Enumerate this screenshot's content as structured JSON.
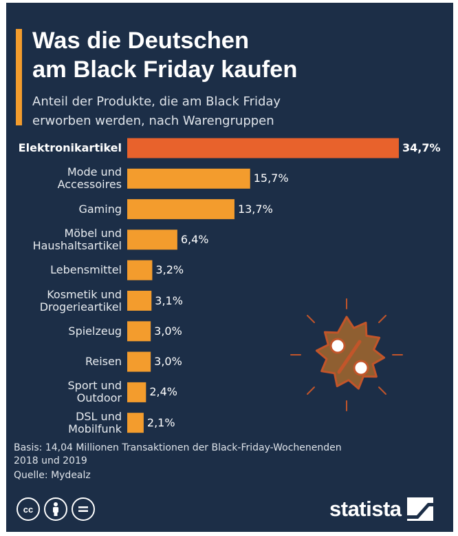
{
  "header": {
    "title": "Was die Deutschen\nam Black Friday kaufen",
    "subtitle": "Anteil der Produkte, die am Black Friday\nerworben werden, nach Warengruppen"
  },
  "colors": {
    "background": "#1c2e47",
    "accent": "#f39c2d",
    "highlight": "#e8622c"
  },
  "chart_data": {
    "type": "bar",
    "orientation": "horizontal",
    "categories": [
      "Elektronikartikel",
      "Mode und\nAccessoires",
      "Gaming",
      "Möbel und\nHaushaltsartikel",
      "Lebensmittel",
      "Kosmetik und\nDrogerieartikel",
      "Spielzeug",
      "Reisen",
      "Sport und\nOutdoor",
      "DSL und\nMobilfunk"
    ],
    "values": [
      34.7,
      15.7,
      13.7,
      6.4,
      3.2,
      3.1,
      3.0,
      3.0,
      2.4,
      2.1
    ],
    "value_labels": [
      "34,7%",
      "15,7%",
      "13,7%",
      "6,4%",
      "3,2%",
      "3,1%",
      "3,0%",
      "3,0%",
      "2,4%",
      "2,1%"
    ],
    "unit": "%",
    "highlight_index": 0,
    "grid": false
  },
  "footer": {
    "basis": "Basis: 14,04 Millionen Transaktionen der Black-Friday-Wochenenden\n2018 und 2019",
    "source": "Quelle: Mydealz",
    "brand": "statista",
    "license_icons": [
      "creative-commons-icon",
      "attribution-icon",
      "no-derivatives-icon"
    ]
  }
}
